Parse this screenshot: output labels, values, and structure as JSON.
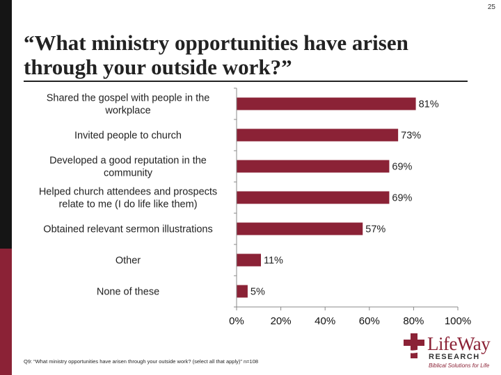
{
  "page_number": "25",
  "title": "“What ministry opportunities have arisen through your outside work?”",
  "footnote": "Q9: “What ministry opportunities have arisen through your outside work? (select all that apply)” n=108",
  "logo": {
    "wordmark": "LifeWay",
    "sub": "RESEARCH",
    "tagline": "Biblical Solutions for Life"
  },
  "colors": {
    "bar": "#8b2236",
    "accent_dark": "#151515",
    "accent_red": "#8b2236"
  },
  "chart_data": {
    "type": "bar",
    "orientation": "horizontal",
    "categories": [
      [
        "Shared the gospel with people in the",
        "workplace"
      ],
      [
        "Invited people to church"
      ],
      [
        "Developed a good reputation in the",
        "community"
      ],
      [
        "Helped church attendees and prospects",
        "relate to me (I do life like them)"
      ],
      [
        "Obtained relevant sermon illustrations"
      ],
      [
        "Other"
      ],
      [
        "None of these"
      ]
    ],
    "values": [
      81,
      73,
      69,
      69,
      57,
      11,
      5
    ],
    "value_labels": [
      "81%",
      "73%",
      "69%",
      "69%",
      "57%",
      "11%",
      "5%"
    ],
    "xlim": [
      0,
      100
    ],
    "x_ticks": [
      0,
      20,
      40,
      60,
      80,
      100
    ],
    "x_tick_labels": [
      "0%",
      "20%",
      "40%",
      "60%",
      "80%",
      "100%"
    ],
    "grid": false
  }
}
